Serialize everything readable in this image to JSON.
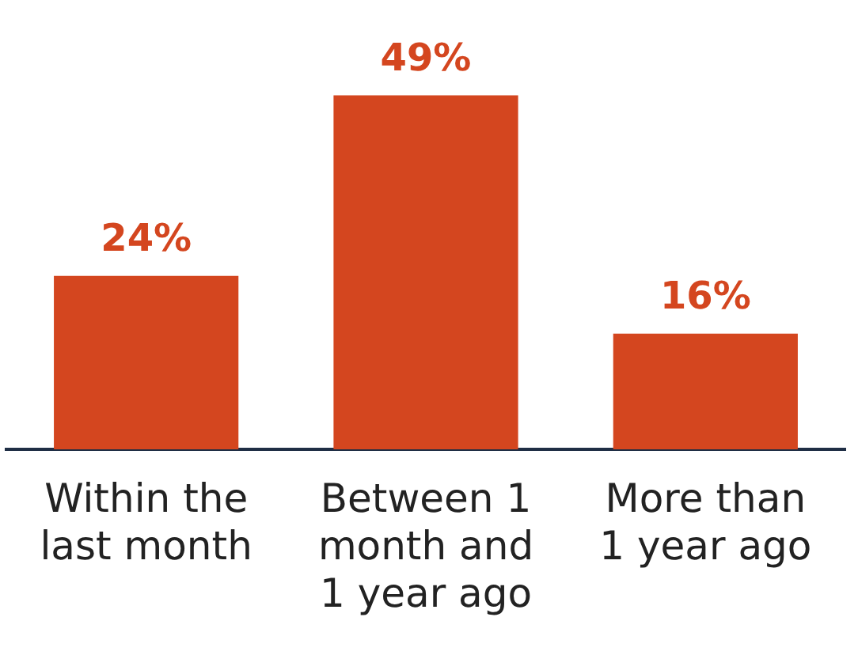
{
  "chart_data": {
    "type": "bar",
    "categories": [
      "Within the last month",
      "Between 1 month and 1 year ago",
      "More than 1 year ago"
    ],
    "values": [
      24,
      49,
      16
    ],
    "color": "#d4461f",
    "value_labels": [
      "24%",
      "49%",
      "16%"
    ],
    "grid": false,
    "legend": false
  }
}
